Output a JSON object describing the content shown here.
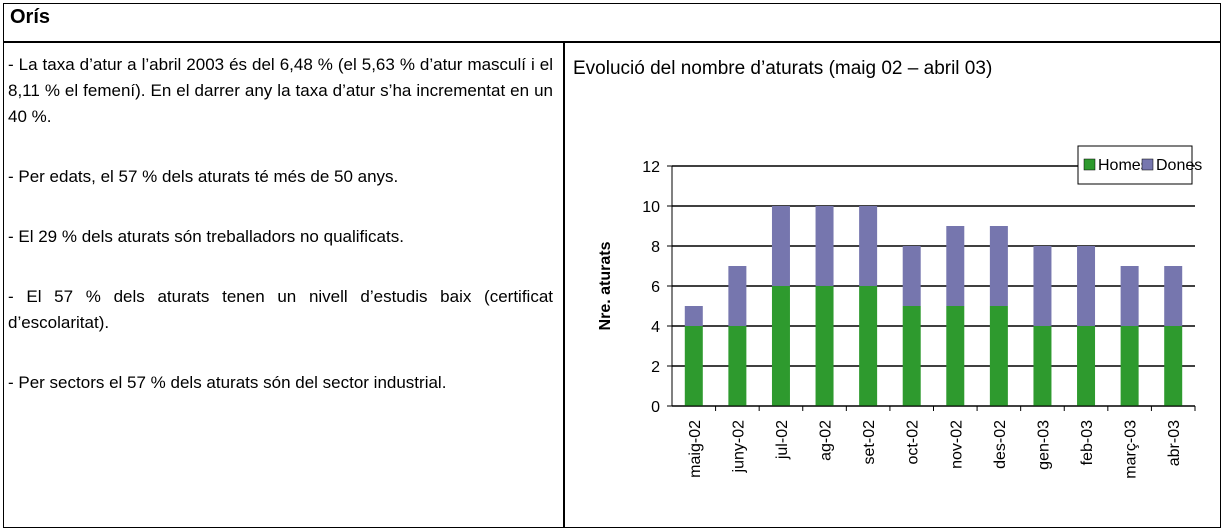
{
  "header": {
    "title": "Orís"
  },
  "left": {
    "paragraphs": [
      "- La taxa d’atur a l’abril 2003 és del 6,48 % (el 5,63 % d’atur masculí i el 8,11 % el femení). En el darrer any la taxa d’atur s’ha incrementat en un 40 %.",
      "- Per edats, el 57 % dels aturats té més de 50 anys.",
      "- El 29 % dels aturats són treballadors no qualificats.",
      "- El 57 % dels aturats tenen un nivell d’estudis baix (certificat d’escolaritat).",
      "- Per sectors el 57 % dels aturats són del sector industrial."
    ]
  },
  "chart_data": {
    "type": "bar",
    "stacked": true,
    "title": "Evolució del nombre d’aturats (maig 02 – abril 03)",
    "y_label": "Nre. aturats",
    "categories": [
      "maig-02",
      "juny-02",
      "jul-02",
      "ag-02",
      "set-02",
      "oct-02",
      "nov-02",
      "des-02",
      "gen-03",
      "feb-03",
      "març-03",
      "abr-03"
    ],
    "series": [
      {
        "name": "Homes",
        "color": "#2e9a2e",
        "values": [
          4,
          4,
          6,
          6,
          6,
          5,
          5,
          5,
          4,
          4,
          4,
          4
        ]
      },
      {
        "name": "Dones",
        "color": "#7676ae",
        "values": [
          1,
          3,
          4,
          4,
          4,
          3,
          4,
          4,
          4,
          4,
          3,
          3
        ]
      }
    ],
    "ylim": [
      0,
      12
    ],
    "yticks": [
      0,
      2,
      4,
      6,
      8,
      10,
      12
    ],
    "grid": true,
    "legend": "top-right"
  }
}
